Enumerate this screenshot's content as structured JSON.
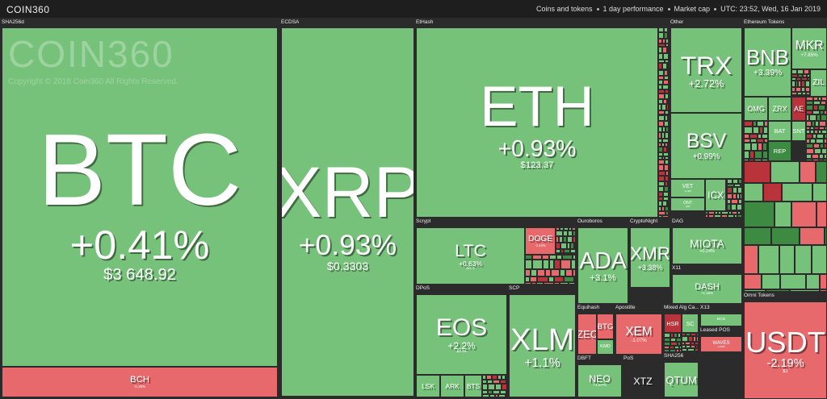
{
  "header": {
    "logo": "COIN360",
    "filters": [
      "Coins and tokens",
      "1 day performance",
      "Market cap"
    ],
    "timestamp": "UTC: 23:52, Wed, 16 Jan 2019"
  },
  "watermark": {
    "logo": "COIN360",
    "copyright": "Copyright © 2018 Coin360 All Rights Reserved."
  },
  "groups": [
    {
      "name": "SHA256d",
      "tiles": [
        {
          "symbol": "BTC",
          "change": "+0.41%",
          "price": "$3 648.92"
        },
        {
          "symbol": "BCH",
          "change": "-0.25%"
        }
      ]
    },
    {
      "name": "ECDSA",
      "tiles": [
        {
          "symbol": "XRP",
          "change": "+0.93%",
          "price": "$0.3303"
        }
      ]
    },
    {
      "name": "EtHash",
      "tiles": [
        {
          "symbol": "ETH",
          "change": "+0.93%",
          "price": "$123.37"
        }
      ]
    },
    {
      "name": "Other",
      "tiles": [
        {
          "symbol": "TRX",
          "change": "+2.72%"
        },
        {
          "symbol": "BSV",
          "change": "+0.99%"
        },
        {
          "symbol": "VET",
          "change": "+1.9%"
        },
        {
          "symbol": "ONT",
          "change": "+6%"
        },
        {
          "symbol": "ICX"
        }
      ]
    },
    {
      "name": "Ethereum Tokens",
      "tiles": [
        {
          "symbol": "BNB",
          "change": "+3.39%"
        },
        {
          "symbol": "MKR",
          "change": "+7.85%"
        },
        {
          "symbol": "OMG"
        },
        {
          "symbol": "ZRX"
        },
        {
          "symbol": "BAT"
        },
        {
          "symbol": "REP"
        },
        {
          "symbol": "AE"
        },
        {
          "symbol": "SNT"
        },
        {
          "symbol": "ZIL"
        }
      ]
    },
    {
      "name": "Scrypt",
      "tiles": [
        {
          "symbol": "LTC",
          "change": "+0.63%",
          "price": "$31.72"
        },
        {
          "symbol": "DOGE",
          "change": "-1.44%"
        }
      ]
    },
    {
      "name": "Ouroboros",
      "tiles": [
        {
          "symbol": "ADA",
          "change": "+3.1%"
        }
      ]
    },
    {
      "name": "CryptoNight",
      "tiles": [
        {
          "symbol": "XMR",
          "change": "+3.38%"
        }
      ]
    },
    {
      "name": "DAG",
      "tiles": [
        {
          "symbol": "MIOTA",
          "change": "+0.24%"
        }
      ]
    },
    {
      "name": "X11",
      "tiles": [
        {
          "symbol": "DASH",
          "change": "+1.16%"
        }
      ]
    },
    {
      "name": "Omni Tokens",
      "tiles": [
        {
          "symbol": "USDT",
          "change": "-2.19%",
          "price": "$1"
        }
      ]
    },
    {
      "name": "DPoS",
      "tiles": [
        {
          "symbol": "EOS",
          "change": "+2.2%",
          "price": "$2.46"
        },
        {
          "symbol": "LSK"
        },
        {
          "symbol": "ARK"
        },
        {
          "symbol": "BTS"
        }
      ]
    },
    {
      "name": "SCP",
      "tiles": [
        {
          "symbol": "XLM",
          "change": "+1.1%"
        }
      ]
    },
    {
      "name": "Equihash",
      "tiles": [
        {
          "symbol": "ZEC"
        },
        {
          "symbol": "BTG"
        },
        {
          "symbol": "KMD"
        }
      ]
    },
    {
      "name": "Apostille",
      "tiles": [
        {
          "symbol": "XEM",
          "change": "-1.07%"
        }
      ]
    },
    {
      "name": "Mixed Alg Ca...",
      "tiles": [
        {
          "symbol": "HSR"
        },
        {
          "symbol": "SC"
        }
      ]
    },
    {
      "name": "X13",
      "tiles": [
        {
          "symbol": "BCD"
        }
      ]
    },
    {
      "name": "Leased POS",
      "tiles": [
        {
          "symbol": "WAVES",
          "change": "-0.84%"
        }
      ]
    },
    {
      "name": "DBFT",
      "tiles": [
        {
          "symbol": "NEO",
          "change": "+1.57%"
        }
      ]
    },
    {
      "name": "PoS",
      "tiles": [
        {
          "symbol": "XTZ"
        }
      ]
    },
    {
      "name": "SHA256",
      "tiles": [
        {
          "symbol": "QTUM"
        }
      ]
    }
  ]
}
